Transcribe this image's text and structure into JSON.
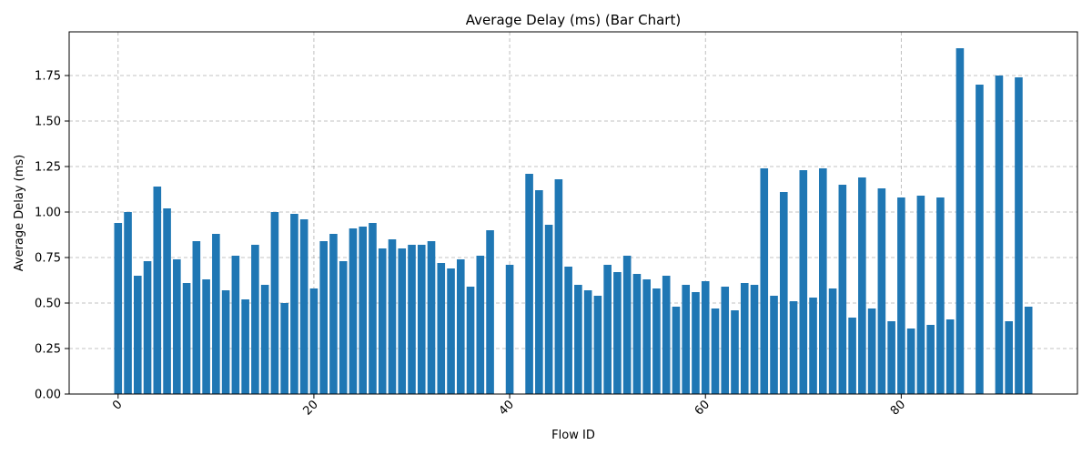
{
  "chart_data": {
    "type": "bar",
    "title": "Average Delay (ms) (Bar Chart)",
    "xlabel": "Flow ID",
    "ylabel": "Average Delay (ms)",
    "xlim": [
      -5,
      98
    ],
    "ylim": [
      0,
      1.99
    ],
    "xticks": [
      0,
      20,
      40,
      60,
      80
    ],
    "yticks": [
      0.0,
      0.25,
      0.5,
      0.75,
      1.0,
      1.25,
      1.5,
      1.75
    ],
    "ytick_labels": [
      "0.00",
      "0.25",
      "0.50",
      "0.75",
      "1.00",
      "1.25",
      "1.50",
      "1.75"
    ],
    "grid": true,
    "bar_color": "#1f77b4",
    "x": [
      0,
      1,
      2,
      3,
      4,
      5,
      6,
      7,
      8,
      9,
      10,
      11,
      12,
      13,
      14,
      15,
      16,
      17,
      18,
      19,
      20,
      21,
      22,
      23,
      24,
      25,
      26,
      27,
      28,
      29,
      30,
      31,
      32,
      33,
      34,
      35,
      36,
      37,
      38,
      40,
      42,
      43,
      44,
      45,
      46,
      47,
      48,
      49,
      50,
      51,
      52,
      53,
      54,
      55,
      56,
      57,
      58,
      59,
      60,
      61,
      62,
      63,
      64,
      65,
      66,
      67,
      68,
      69,
      70,
      71,
      72,
      73,
      74,
      75,
      76,
      77,
      78,
      79,
      80,
      81,
      82,
      83,
      84,
      85,
      86,
      88,
      90,
      91,
      92,
      93
    ],
    "values": [
      0.94,
      1.0,
      0.65,
      0.73,
      1.14,
      1.02,
      0.74,
      0.61,
      0.84,
      0.63,
      0.88,
      0.57,
      0.76,
      0.52,
      0.82,
      0.6,
      1.0,
      0.5,
      0.99,
      0.96,
      0.58,
      0.84,
      0.88,
      0.73,
      0.91,
      0.92,
      0.94,
      0.8,
      0.85,
      0.8,
      0.82,
      0.82,
      0.84,
      0.72,
      0.69,
      0.74,
      0.59,
      0.76,
      0.9,
      0.71,
      1.21,
      1.12,
      0.93,
      1.18,
      0.7,
      0.6,
      0.57,
      0.54,
      0.71,
      0.67,
      0.76,
      0.66,
      0.63,
      0.58,
      0.65,
      0.48,
      0.6,
      0.56,
      0.62,
      0.47,
      0.59,
      0.46,
      0.61,
      0.6,
      1.24,
      0.54,
      1.11,
      0.51,
      1.23,
      0.53,
      1.24,
      0.58,
      1.15,
      0.42,
      1.19,
      0.47,
      1.13,
      0.4,
      1.08,
      0.36,
      1.09,
      0.38,
      1.08,
      0.41,
      1.9,
      1.7,
      1.75,
      0.4,
      1.74,
      0.48
    ]
  }
}
